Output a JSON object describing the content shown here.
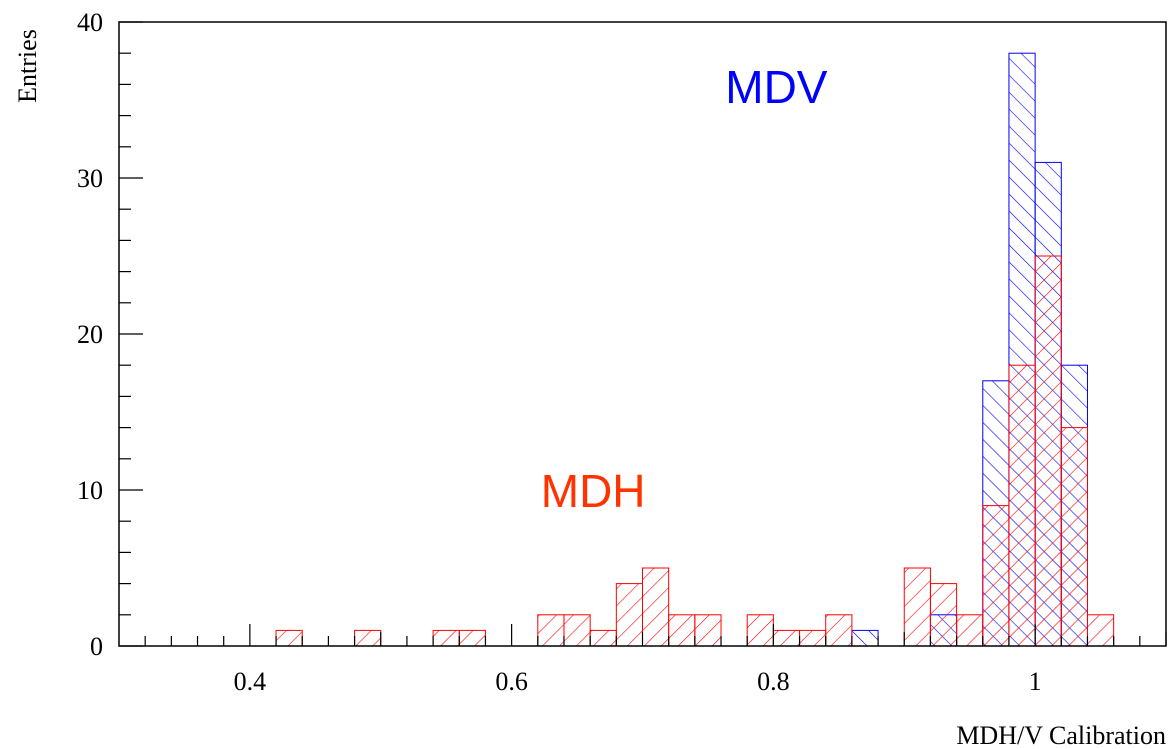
{
  "chart_data": {
    "type": "bar",
    "subtype": "histogram",
    "xlabel": "MDH/V Calibration",
    "ylabel": "Entries",
    "xlim": [
      0.3,
      1.1
    ],
    "ylim": [
      0,
      40
    ],
    "bin_width": 0.02,
    "x_ticks": [
      0.4,
      0.6,
      0.8,
      1.0
    ],
    "x_tick_labels": [
      "0.4",
      "0.6",
      "0.8",
      "1"
    ],
    "y_ticks": [
      0,
      10,
      20,
      30,
      40
    ],
    "y_tick_labels": [
      "0",
      "10",
      "20",
      "30",
      "40"
    ],
    "grid": false,
    "legend": "none",
    "series": [
      {
        "name": "MDV",
        "color": "#0000ff",
        "hatch": "backslash",
        "bins": [
          {
            "x0": 0.86,
            "value": 1
          },
          {
            "x0": 0.92,
            "value": 2
          },
          {
            "x0": 0.96,
            "value": 17
          },
          {
            "x0": 0.98,
            "value": 38
          },
          {
            "x0": 1.0,
            "value": 31
          },
          {
            "x0": 1.02,
            "value": 18
          }
        ]
      },
      {
        "name": "MDH",
        "color": "#ff0000",
        "hatch": "slash",
        "bins": [
          {
            "x0": 0.42,
            "value": 1
          },
          {
            "x0": 0.48,
            "value": 1
          },
          {
            "x0": 0.54,
            "value": 1
          },
          {
            "x0": 0.56,
            "value": 1
          },
          {
            "x0": 0.62,
            "value": 2
          },
          {
            "x0": 0.64,
            "value": 2
          },
          {
            "x0": 0.66,
            "value": 1
          },
          {
            "x0": 0.68,
            "value": 4
          },
          {
            "x0": 0.7,
            "value": 5
          },
          {
            "x0": 0.72,
            "value": 2
          },
          {
            "x0": 0.74,
            "value": 2
          },
          {
            "x0": 0.78,
            "value": 2
          },
          {
            "x0": 0.8,
            "value": 1
          },
          {
            "x0": 0.82,
            "value": 1
          },
          {
            "x0": 0.84,
            "value": 2
          },
          {
            "x0": 0.9,
            "value": 5
          },
          {
            "x0": 0.92,
            "value": 4
          },
          {
            "x0": 0.94,
            "value": 2
          },
          {
            "x0": 0.96,
            "value": 9
          },
          {
            "x0": 0.98,
            "value": 18
          },
          {
            "x0": 1.0,
            "value": 25
          },
          {
            "x0": 1.02,
            "value": 14
          },
          {
            "x0": 1.04,
            "value": 2
          }
        ]
      }
    ],
    "annotations": [
      {
        "text": "MDV",
        "color": "#0000ff",
        "x": 0.8,
        "y": 35
      },
      {
        "text": "MDH",
        "color": "#ff3300",
        "x": 0.66,
        "y": 10
      }
    ]
  }
}
